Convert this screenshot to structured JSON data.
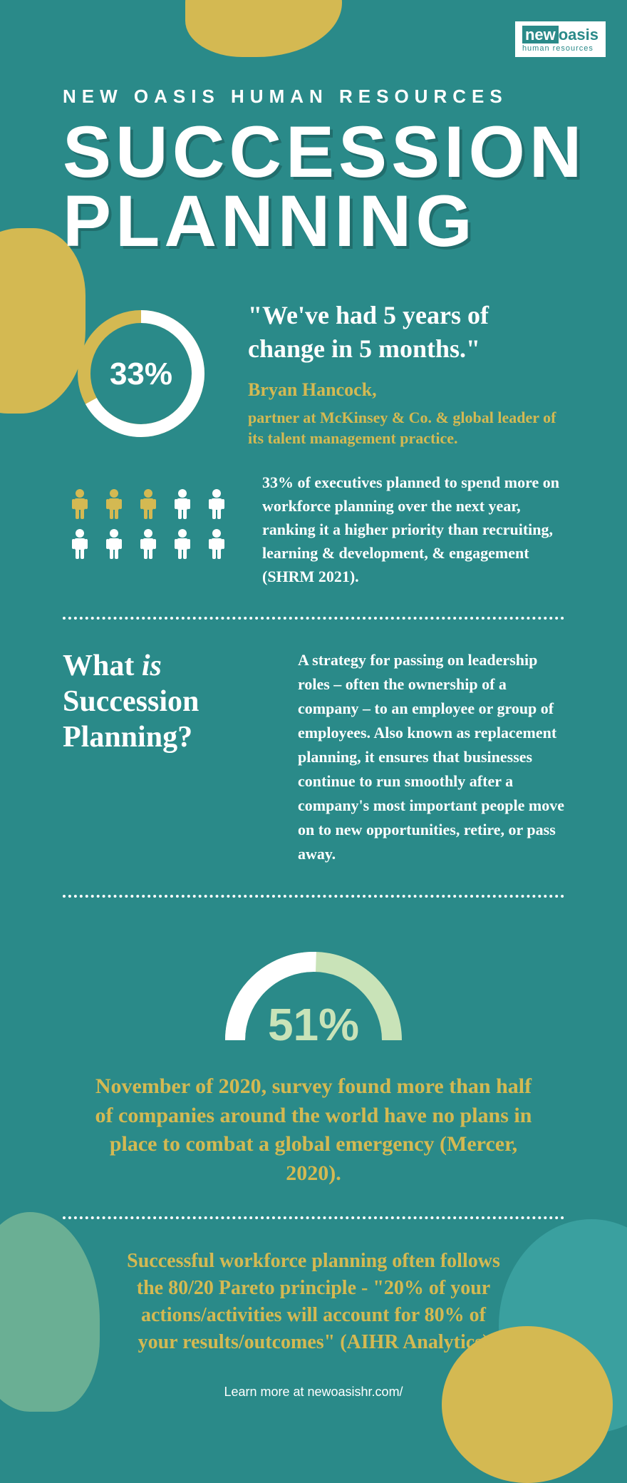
{
  "brand": {
    "logo_new": "new",
    "logo_oasis": "oasis",
    "logo_sub": "human resources"
  },
  "header": {
    "subtitle": "NEW OASIS HUMAN RESOURCES",
    "title": "SUCCESSION PLANNING"
  },
  "colors": {
    "bg": "#2a8a89",
    "accent_yellow": "#d4b952",
    "accent_green": "#c9e3b8",
    "white": "#ffffff"
  },
  "donut": {
    "percent_label": "33%",
    "percent_value": 33,
    "ring_fg": "#ffffff",
    "ring_bg": "#d4b952",
    "stroke_width": 18
  },
  "quote": {
    "text": "\"We've had 5 years of change in 5 months.\"",
    "name": "Bryan Hancock,",
    "title": "partner at McKinsey & Co. & global leader of its talent management practice."
  },
  "people_icons": {
    "total": 10,
    "highlighted": 3,
    "highlight_color": "#d4b952",
    "normal_color": "#ffffff"
  },
  "stat_text": "33% of executives planned to spend more on workforce planning over the next year, ranking it a higher priority than recruiting, learning & development, & engagement (SHRM 2021).",
  "definition_section": {
    "heading_pre": "What ",
    "heading_em": "is",
    "heading_post": " Succession Planning?",
    "body": "A strategy for passing on leadership roles – often the ownership of a company – to an employee or group of employees. Also known as replacement planning, it ensures that businesses continue to run smoothly after a company's most important people move on to new opportunities, retire, or pass away."
  },
  "gauge": {
    "percent_label": "51%",
    "percent_value": 51,
    "fg_color": "#ffffff",
    "bg_color": "#c9e3b8",
    "stroke_width": 28
  },
  "survey_text": "November of 2020, survey found more than half of companies around the world have no plans in place to combat a global emergency (Mercer, 2020).",
  "pareto_text": "Successful workforce planning often follows the 80/20 Pareto principle - \"20% of your actions/activities will account for 80% of your results/outcomes\" (AIHR Analytics)",
  "footer": "Learn more at newoasishr.com/"
}
